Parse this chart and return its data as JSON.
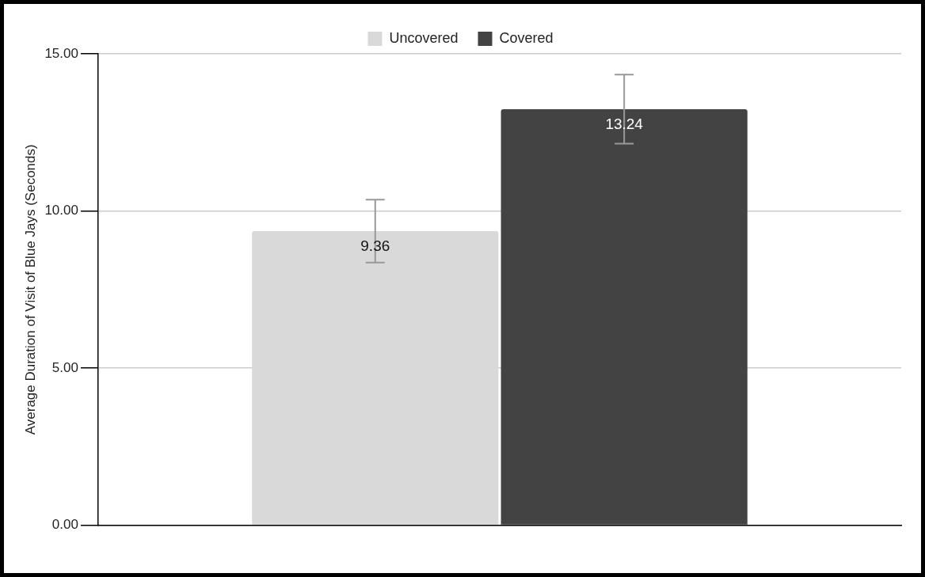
{
  "chart_data": {
    "type": "bar",
    "ylabel": "Average Duration of Visit of Blue Jays (Seconds)",
    "categories": [
      null
    ],
    "series": [
      {
        "name": "Uncovered",
        "color": "#d9d9d9",
        "values": [
          9.36
        ],
        "errors": [
          1.0
        ]
      },
      {
        "name": "Covered",
        "color": "#434343",
        "values": [
          13.24
        ],
        "errors": [
          1.1
        ]
      }
    ],
    "ylim": [
      0,
      15
    ],
    "yticks": [
      {
        "value": 0,
        "label": "0.00"
      },
      {
        "value": 5,
        "label": "5.00"
      },
      {
        "value": 10,
        "label": "10.00"
      },
      {
        "value": 15,
        "label": "15.00"
      }
    ],
    "grid": "y",
    "legend": "top",
    "data_labels": true
  }
}
